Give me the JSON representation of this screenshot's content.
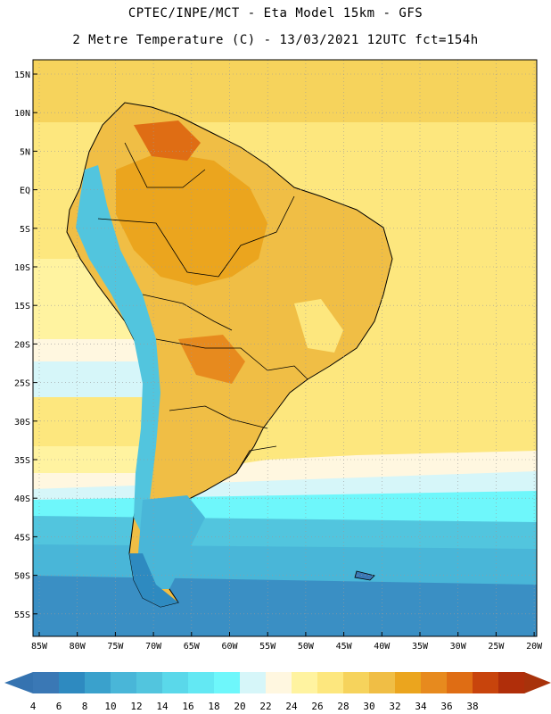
{
  "header": {
    "line1": "CPTEC/INPE/MCT -  Eta Model 15km - GFS",
    "line2": "2 Metre Temperature (C) - 13/03/2021 12UTC fct=154h"
  },
  "map": {
    "lat_labels": [
      "15N",
      "10N",
      "5N",
      "EQ",
      "5S",
      "10S",
      "15S",
      "20S",
      "25S",
      "30S",
      "35S",
      "40S",
      "45S",
      "50S",
      "55S"
    ],
    "lon_labels": [
      "85W",
      "80W",
      "75W",
      "70W",
      "65W",
      "60W",
      "55W",
      "50W",
      "45W",
      "40W",
      "35W",
      "30W",
      "25W",
      "20W"
    ]
  },
  "colorbar": {
    "labels": [
      "4",
      "6",
      "8",
      "10",
      "12",
      "14",
      "16",
      "18",
      "20",
      "22",
      "24",
      "26",
      "28",
      "30",
      "32",
      "34",
      "36",
      "38"
    ],
    "colors": [
      "#3a78b5",
      "#2e8ac0",
      "#3aa1cc",
      "#49b6d8",
      "#52c5de",
      "#5ad8ea",
      "#63e8f3",
      "#6ef7fb",
      "#d6f6f9",
      "#fff7e0",
      "#fff3a0",
      "#fde77e",
      "#f6d35c",
      "#f0be45",
      "#eba51e",
      "#e78a1e",
      "#df6d14",
      "#c8440c",
      "#b02e0a"
    ],
    "left_arrow_color": "#3573b0",
    "right_arrow_color": "#a8320b"
  }
}
